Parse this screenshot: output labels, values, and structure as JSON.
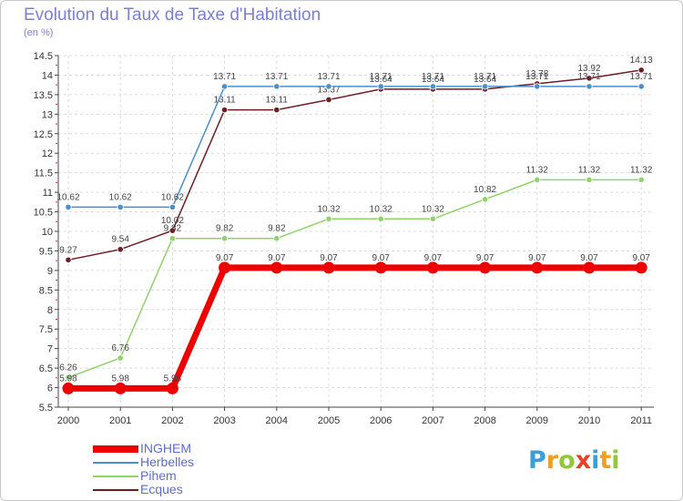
{
  "title": "Evolution du Taux de Taxe d'Habitation",
  "subtitle": "(en %)",
  "logo": {
    "text": "Proxiti",
    "letters": [
      {
        "ch": "P",
        "color": "#3aa0dc"
      },
      {
        "ch": "r",
        "color": "#f0a020"
      },
      {
        "ch": "o",
        "color": "#8fc93a"
      },
      {
        "ch": "x",
        "color": "#e8402a"
      },
      {
        "ch": "i",
        "color": "#3aa0dc"
      },
      {
        "ch": "t",
        "color": "#f0a020"
      },
      {
        "ch": "i",
        "color": "#8fc93a"
      }
    ]
  },
  "chart_data": {
    "type": "line",
    "title": "Evolution du Taux de Taxe d'Habitation",
    "ylabel": "(en %)",
    "xlabel": "",
    "ylim": [
      5.5,
      14.5
    ],
    "yticks": [
      5.5,
      6,
      6.5,
      7,
      7.5,
      8,
      8.5,
      9,
      9.5,
      10,
      10.5,
      11,
      11.5,
      12,
      12.5,
      13,
      13.5,
      14,
      14.5
    ],
    "ytick_labels": [
      "5.5",
      "6",
      "6.5",
      "7",
      "7.5",
      "8",
      "8.5",
      "9",
      "9.5",
      "10",
      "10.5",
      "11",
      "11.5",
      "12",
      "12.5",
      "13",
      "13.5",
      "14",
      "14.5"
    ],
    "x": [
      "2000",
      "2001",
      "2002",
      "2003",
      "2004",
      "2005",
      "2006",
      "2007",
      "2008",
      "2009",
      "2010",
      "2011"
    ],
    "grid": true,
    "legend_position": "bottom-left",
    "series": [
      {
        "name": "Ecques",
        "color": "#6e1e22",
        "values": [
          9.27,
          9.54,
          10.02,
          13.11,
          13.11,
          13.37,
          13.64,
          13.64,
          13.64,
          13.78,
          13.92,
          14.13
        ],
        "labels": [
          "9.27",
          "9.54",
          "10.02",
          "13.11",
          "13.11",
          "13.37",
          "13.64",
          "13.64",
          "13.64",
          "13.78",
          "13.92",
          "14.13"
        ]
      },
      {
        "name": "Herbelles",
        "color": "#4a8fc9",
        "values": [
          10.62,
          10.62,
          10.62,
          13.71,
          13.71,
          13.71,
          13.71,
          13.71,
          13.71,
          13.71,
          13.71,
          13.71
        ],
        "labels": [
          "10.62",
          "10.62",
          "10.62",
          "13.71",
          "13.71",
          "13.71",
          "13.71",
          "13.71",
          "13.71",
          "13.71",
          "13.71",
          "13.71"
        ]
      },
      {
        "name": "Pihem",
        "color": "#8fd36a",
        "values": [
          6.26,
          6.76,
          9.82,
          9.82,
          9.82,
          10.32,
          10.32,
          10.32,
          10.82,
          11.32,
          11.32,
          11.32
        ],
        "labels": [
          "6.26",
          "6.76",
          "9.82",
          "9.82",
          "9.82",
          "10.32",
          "10.32",
          "10.32",
          "10.82",
          "11.32",
          "11.32",
          "11.32"
        ]
      },
      {
        "name": "INGHEM",
        "color": "#ee0000",
        "values": [
          5.98,
          5.98,
          5.98,
          9.07,
          9.07,
          9.07,
          9.07,
          9.07,
          9.07,
          9.07,
          9.07,
          9.07
        ],
        "labels": [
          "5.98",
          "5.98",
          "5.98",
          "9.07",
          "9.07",
          "9.07",
          "9.07",
          "9.07",
          "9.07",
          "9.07",
          "9.07",
          "9.07"
        ]
      }
    ],
    "legend": [
      {
        "name": "INGHEM",
        "color": "#ee0000"
      },
      {
        "name": "Herbelles",
        "color": "#4a8fc9"
      },
      {
        "name": "Pihem",
        "color": "#8fd36a"
      },
      {
        "name": "Ecques",
        "color": "#6e1e22"
      }
    ]
  }
}
